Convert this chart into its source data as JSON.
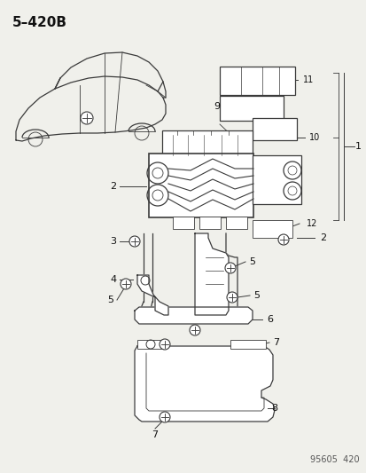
{
  "title": "5–420B",
  "bg_color": "#f0f0eb",
  "line_color": "#3a3a3a",
  "label_color": "#111111",
  "watermark": "95605  420",
  "fig_w": 4.14,
  "fig_h": 5.33,
  "dpi": 100
}
